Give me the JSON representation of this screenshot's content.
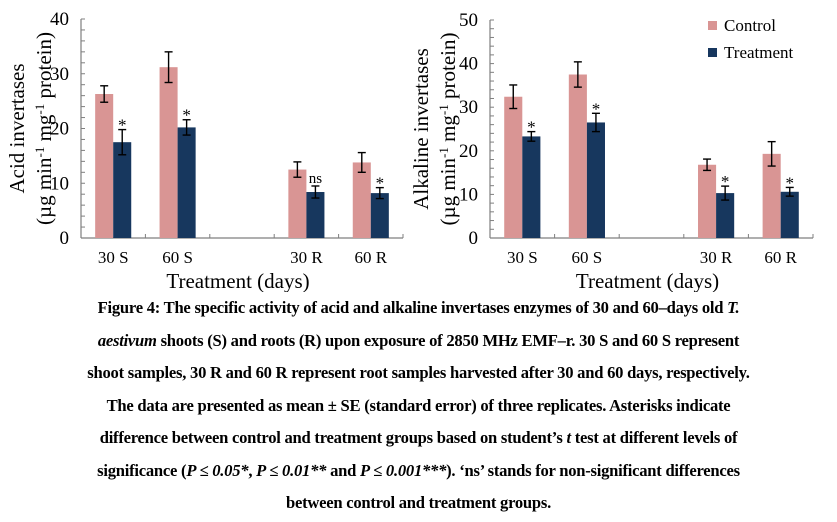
{
  "chart_data": [
    {
      "type": "bar",
      "id": "acid",
      "ylabel_line1": "Acid invertases",
      "ylabel_line2_parts": [
        "(µg min",
        "-1",
        " mg",
        "-1",
        " protein)"
      ],
      "xlabel": "Treatment (days)",
      "categories": [
        "30 S",
        "60 S",
        "",
        "30 R",
        "60 R"
      ],
      "ylim": [
        0,
        40
      ],
      "yticks": [
        0,
        10,
        20,
        30,
        40
      ],
      "yminor_step": 2,
      "legend": null,
      "series": [
        {
          "name": "Control",
          "color": "#d99594",
          "values": [
            26.3,
            31.2,
            null,
            12.5,
            13.8
          ],
          "errors": [
            1.5,
            2.8,
            null,
            1.4,
            1.8
          ]
        },
        {
          "name": "Treatment",
          "color": "#17375e",
          "values": [
            17.5,
            20.2,
            null,
            8.4,
            8.2
          ],
          "errors": [
            2.3,
            1.4,
            null,
            1.1,
            1.0
          ]
        }
      ],
      "annotations": [
        "*",
        "*",
        "",
        "ns",
        "*"
      ]
    },
    {
      "type": "bar",
      "id": "alkaline",
      "ylabel_line1": "Alkaline invertases",
      "ylabel_line2_parts": [
        "(µg min",
        "-1",
        " mg",
        "-1",
        " protein)"
      ],
      "xlabel": "Treatment (days)",
      "categories": [
        "30 S",
        "60 S",
        "",
        "30 R",
        "60 R"
      ],
      "ylim": [
        0,
        50
      ],
      "yticks": [
        0,
        10,
        20,
        30,
        40,
        50
      ],
      "yminor_step": 2,
      "legend": "top-right",
      "series": [
        {
          "name": "Control",
          "color": "#d99594",
          "values": [
            32.4,
            37.5,
            null,
            16.8,
            19.3
          ],
          "errors": [
            2.7,
            2.9,
            null,
            1.3,
            2.8
          ]
        },
        {
          "name": "Treatment",
          "color": "#17375e",
          "values": [
            23.3,
            26.5,
            null,
            10.3,
            10.6
          ],
          "errors": [
            1.1,
            2.1,
            null,
            1.6,
            1.0
          ]
        }
      ],
      "annotations": [
        "*",
        "*",
        "",
        "*",
        "*"
      ]
    }
  ],
  "caption": {
    "line1_a": "Figure 4: The specific activity of acid and alkaline invertases enzymes of 30 and 60–days old ",
    "line1_i": "T.",
    "line2_i": "aestivum",
    "line2_b": " shoots (S) and roots (R) upon exposure of 2850 MHz EMF–r. 30 S and 60 S represent",
    "line3": "shoot samples, 30 R and 60 R represent root samples harvested after 30 and 60 days, respectively.",
    "line4": "The data are presented as mean ± SE (standard error) of three replicates. Asterisks indicate",
    "line5_a": "difference between control and treatment groups based on student’s ",
    "line5_i": "t",
    "line5_b": " test at different levels of",
    "line6_a": "significance (",
    "line6_i1": "P ≤ 0.05*",
    "line6_b": ", ",
    "line6_i2": "P ≤ 0.01**",
    "line6_c": " and ",
    "line6_i3": "P ≤ 0.001***",
    "line6_d": "). ‘ns’ stands for non-significant differences",
    "line7": "between control and treatment groups."
  }
}
